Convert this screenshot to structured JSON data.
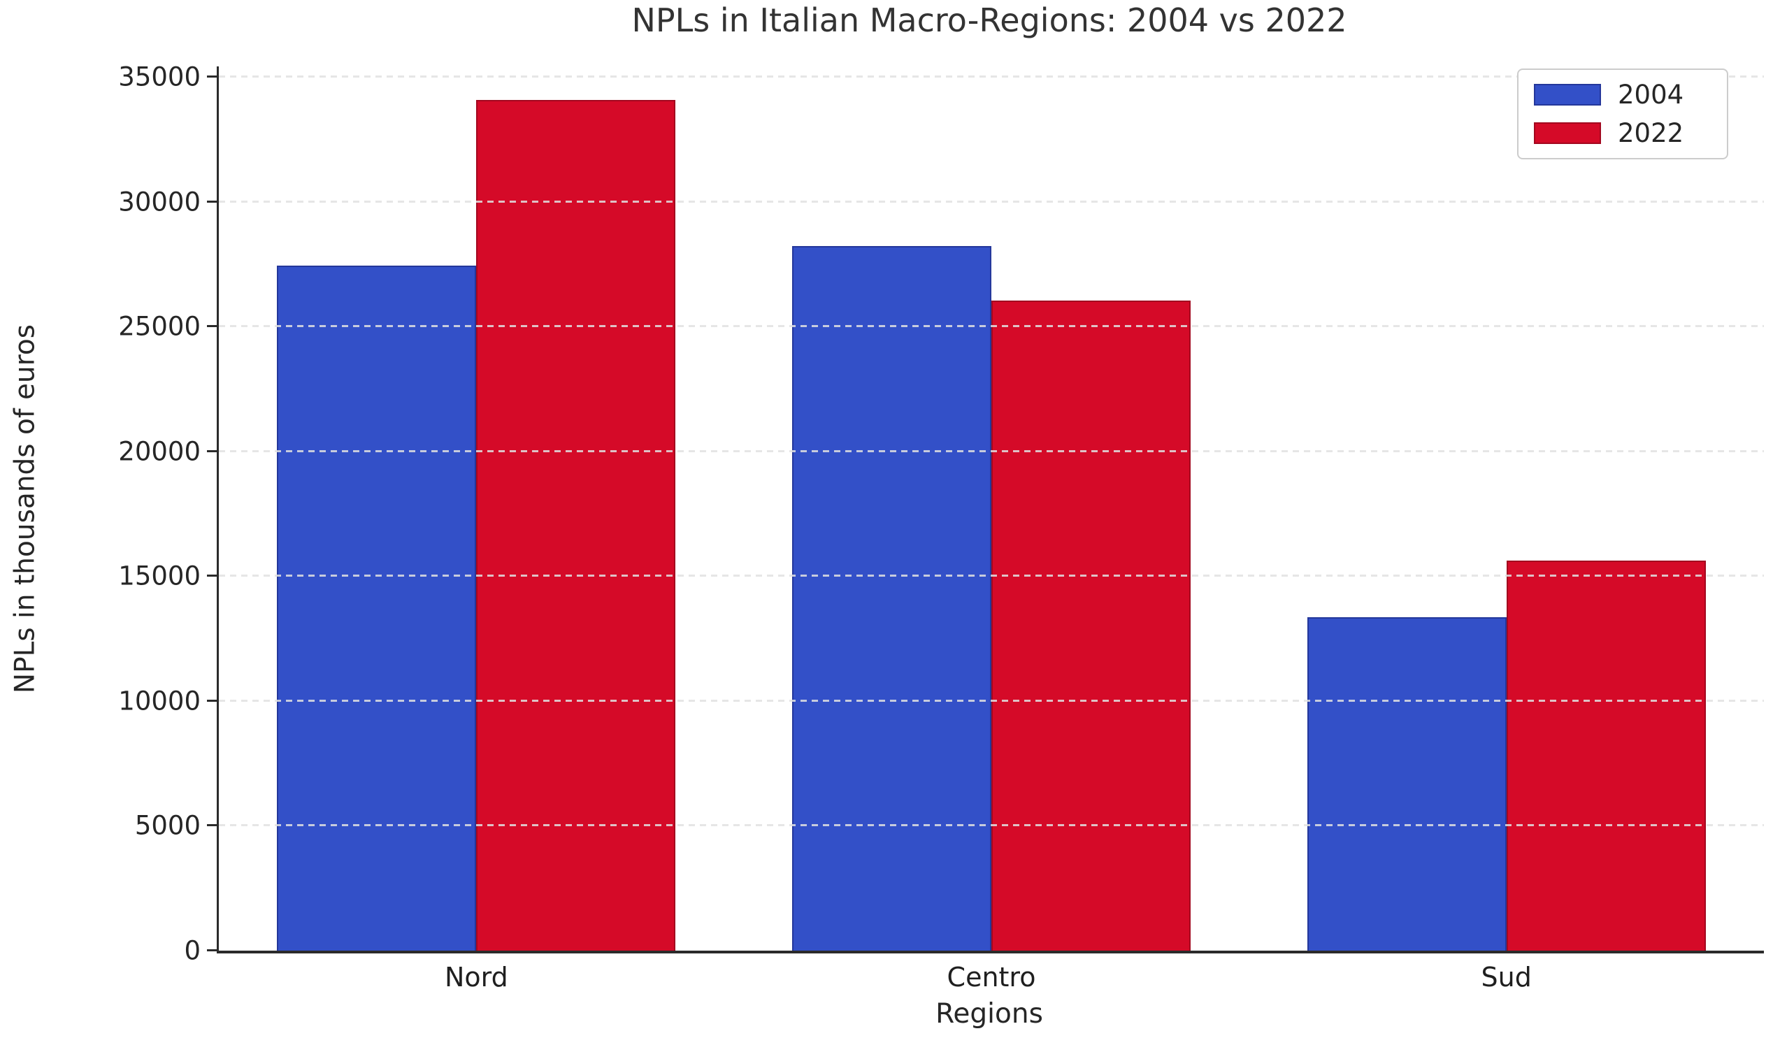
{
  "title": "NPLs in Italian Macro-Regions: 2004 vs 2022",
  "chart_data": {
    "type": "bar",
    "title": "NPLs in Italian Macro-Regions: 2004 vs 2022",
    "xlabel": "Regions",
    "ylabel": "NPLs in thousands of euros",
    "categories": [
      "Nord",
      "Centro",
      "Sud"
    ],
    "series": [
      {
        "name": "2004",
        "color": "#3350C8",
        "edge_color": "#24379B",
        "values": [
          27450,
          28220,
          13360
        ]
      },
      {
        "name": "2022",
        "color": "#D50A28",
        "edge_color": "#A3081F",
        "values": [
          34080,
          26040,
          15620
        ]
      }
    ],
    "ylim": [
      0,
      35420
    ],
    "yticks": [
      0,
      5000,
      10000,
      15000,
      20000,
      25000,
      30000,
      35000
    ],
    "grid": true,
    "grid_style": "dashed",
    "legend_position": "upper right",
    "legend_entries": [
      "2004",
      "2022"
    ]
  }
}
